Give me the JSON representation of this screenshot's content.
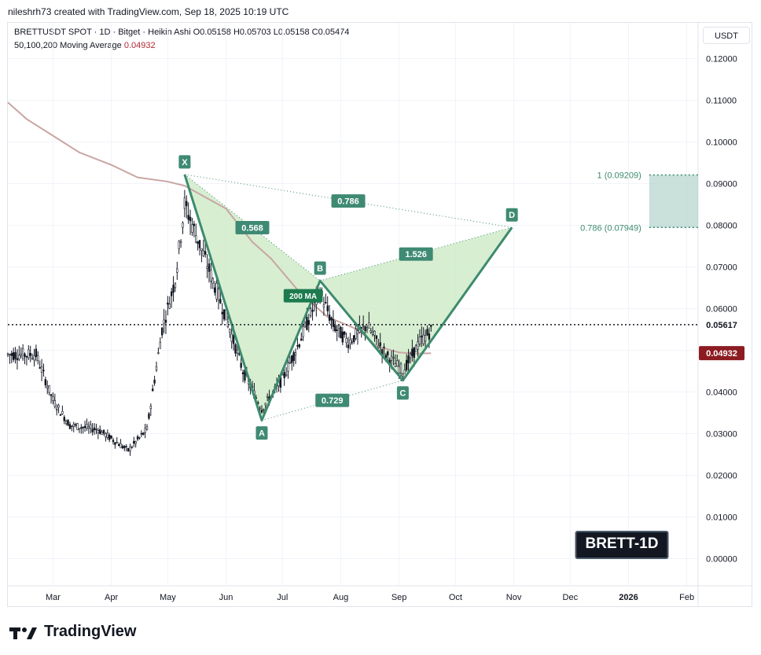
{
  "header": {
    "attribution": "nileshrh73 created with TradingView.com, Sep 18, 2025 10:19 UTC",
    "symbol_line": "BRETTUSDT SPOT · 1D · Bitget · Heikin Ashi  O0.05158  H0.05703  L0.05158  C0.05474",
    "ma_label": "50,100,200 Moving Average",
    "ma_value": "0.04932",
    "currency": "USDT"
  },
  "footer": {
    "brand": "TradingView",
    "logo_icon": "tradingview-logo-icon"
  },
  "colors": {
    "pattern_line": "#3d8b6e",
    "pattern_fill": "#c9e8c2",
    "label_bg": "#3f8a73",
    "ma_line": "#c9a6a4",
    "price_line": "#131722",
    "ma_badge": "#8c1c22",
    "prz_fill": "#b7d6cf",
    "grid": "#f0f3fa"
  },
  "chart_data": {
    "type": "candlestick",
    "title": "BRETT-1D",
    "y_axis": {
      "ticks": [
        "0.12000",
        "0.11000",
        "0.10000",
        "0.09000",
        "0.08000",
        "0.07000",
        "0.06000",
        "0.05000",
        "0.04000",
        "0.03000",
        "0.02000",
        "0.01000",
        "0.00000"
      ],
      "tick_values": [
        0.12,
        0.11,
        0.1,
        0.09,
        0.08,
        0.07,
        0.06,
        0.05,
        0.04,
        0.03,
        0.02,
        0.01,
        0.0
      ],
      "ylim": [
        -0.0065,
        0.1286
      ],
      "position": "right"
    },
    "x_axis": {
      "ticks": [
        "Mar",
        "Apr",
        "May",
        "Jun",
        "Jul",
        "Aug",
        "Sep",
        "Oct",
        "Nov",
        "Dec",
        "2026",
        "Feb"
      ],
      "tick_dates": [
        "2025-03-01",
        "2025-04-01",
        "2025-05-01",
        "2025-06-01",
        "2025-07-01",
        "2025-08-01",
        "2025-09-01",
        "2025-10-01",
        "2025-11-01",
        "2025-12-01",
        "2026-01-01",
        "2026-02-01"
      ],
      "xlim": [
        "2025-02-05",
        "2026-02-07"
      ]
    },
    "current_price": {
      "label": "0.05617",
      "value": 0.05617
    },
    "ma_200": {
      "label": "200 MA",
      "value_label": "0.04932",
      "value": 0.04932,
      "points": [
        [
          "2025-02-05",
          0.1095
        ],
        [
          "2025-02-15",
          0.1055
        ],
        [
          "2025-03-01",
          0.1015
        ],
        [
          "2025-03-15",
          0.0975
        ],
        [
          "2025-04-01",
          0.0945
        ],
        [
          "2025-04-15",
          0.0915
        ],
        [
          "2025-05-01",
          0.0905
        ],
        [
          "2025-05-10",
          0.0895
        ],
        [
          "2025-05-20",
          0.087
        ],
        [
          "2025-06-01",
          0.084
        ],
        [
          "2025-06-15",
          0.076
        ],
        [
          "2025-06-25",
          0.072
        ],
        [
          "2025-07-10",
          0.064
        ],
        [
          "2025-07-20",
          0.06
        ],
        [
          "2025-07-25",
          0.058
        ],
        [
          "2025-08-10",
          0.055
        ],
        [
          "2025-08-20",
          0.051
        ],
        [
          "2025-09-01",
          0.0495
        ],
        [
          "2025-09-10",
          0.0492
        ],
        [
          "2025-09-18",
          0.0493
        ]
      ]
    },
    "harmonic_pattern": {
      "points": [
        {
          "label": "X",
          "date": "2025-05-10",
          "value": 0.0922
        },
        {
          "label": "A",
          "date": "2025-06-20",
          "value": 0.0332
        },
        {
          "label": "B",
          "date": "2025-07-21",
          "value": 0.0667
        },
        {
          "label": "C",
          "date": "2025-09-03",
          "value": 0.0428
        },
        {
          "label": "D",
          "date": "2025-10-31",
          "value": 0.0795
        }
      ],
      "ratios": [
        {
          "label": "0.568",
          "between": "X-B"
        },
        {
          "label": "0.786",
          "between": "X-D"
        },
        {
          "label": "0.729",
          "between": "A-C"
        },
        {
          "label": "1.526",
          "between": "B-D"
        }
      ]
    },
    "prz": {
      "levels": [
        {
          "label": "1 (0.09209)",
          "value": 0.09209
        },
        {
          "label": "0.786 (0.07949)",
          "value": 0.07949
        }
      ],
      "start_date": "2026-01-12",
      "end_date": "2026-02-07"
    },
    "candle_trend": [
      [
        "2025-02-05",
        0.049
      ],
      [
        "2025-02-20",
        0.049
      ],
      [
        "2025-03-01",
        0.038
      ],
      [
        "2025-03-10",
        0.032
      ],
      [
        "2025-03-25",
        0.031
      ],
      [
        "2025-04-10",
        0.026
      ],
      [
        "2025-04-20",
        0.031
      ],
      [
        "2025-04-28",
        0.055
      ],
      [
        "2025-05-05",
        0.067
      ],
      [
        "2025-05-10",
        0.085
      ],
      [
        "2025-05-20",
        0.073
      ],
      [
        "2025-06-01",
        0.058
      ],
      [
        "2025-06-10",
        0.045
      ],
      [
        "2025-06-20",
        0.036
      ],
      [
        "2025-07-01",
        0.043
      ],
      [
        "2025-07-10",
        0.052
      ],
      [
        "2025-07-21",
        0.064
      ],
      [
        "2025-07-28",
        0.056
      ],
      [
        "2025-08-05",
        0.052
      ],
      [
        "2025-08-15",
        0.056
      ],
      [
        "2025-08-25",
        0.049
      ],
      [
        "2025-09-03",
        0.045
      ],
      [
        "2025-09-12",
        0.052
      ],
      [
        "2025-09-18",
        0.0547
      ]
    ]
  }
}
